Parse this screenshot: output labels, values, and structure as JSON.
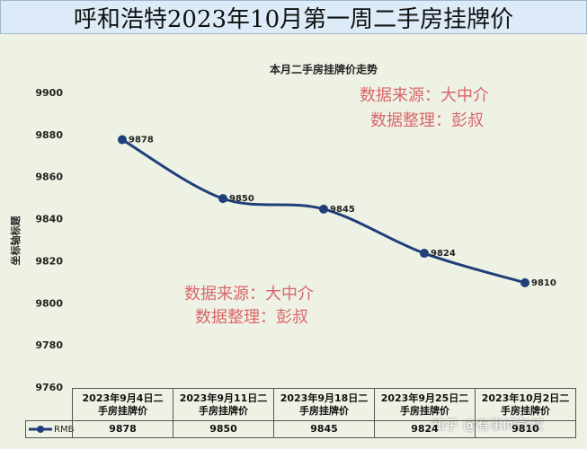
{
  "chart_data": {
    "type": "line",
    "title": "呼和浩特2023年10月第一周二手房挂牌价",
    "subtitle": "本月二手房挂牌价走势",
    "y_label": "坐标轴标题",
    "categories": [
      "2023年9月4日二手房挂牌价",
      "2023年9月11日二手房挂牌价",
      "2023年9月18日二手房挂牌价",
      "2023年9月25日二手房挂牌价",
      "2023年10月2日二手房挂牌价"
    ],
    "series": [
      {
        "name": "RMB",
        "color": "#1f3f7a",
        "values": [
          9878,
          9850,
          9845,
          9824,
          9810
        ]
      }
    ],
    "ylim": [
      9760,
      9900
    ],
    "yticks": [
      9760,
      9780,
      9800,
      9820,
      9840,
      9860,
      9880,
      9900
    ],
    "annotations": [
      "数据来源：大中介",
      "数据整理：彭叔",
      "知乎 @有事问彭叔"
    ]
  }
}
